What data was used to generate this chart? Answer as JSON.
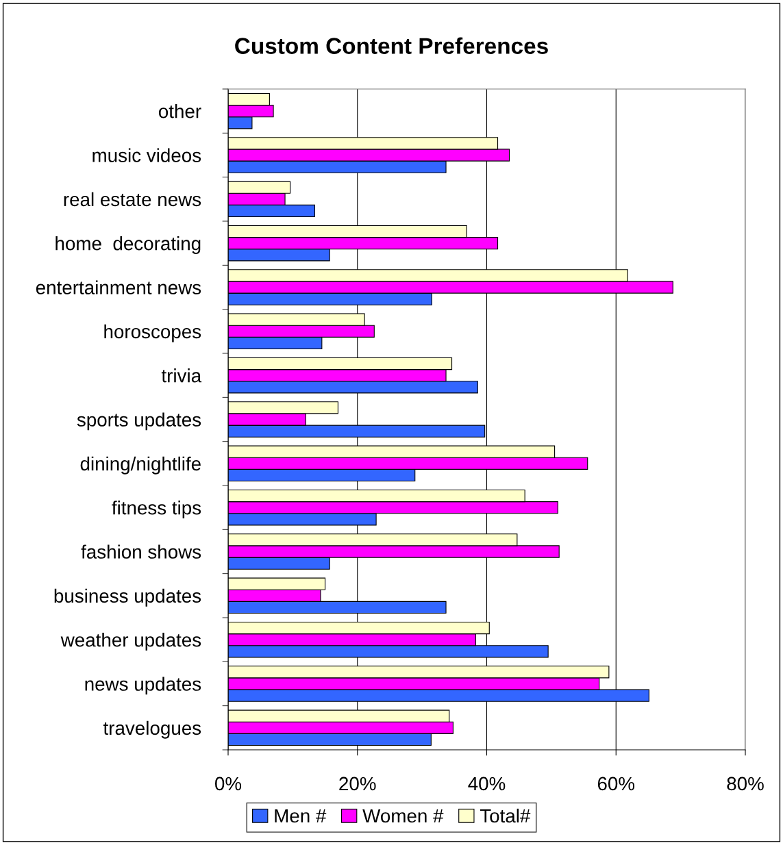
{
  "chart_data": {
    "type": "bar",
    "orientation": "horizontal",
    "title": "Custom Content Preferences",
    "categories": [
      "other",
      "music videos",
      "real estate news",
      "home  decorating",
      "entertainment news",
      "horoscopes",
      "trivia",
      "sports updates",
      "dining/nightlife",
      "fitness tips",
      "fashion shows",
      "business updates",
      "weather updates",
      "news updates",
      "travelogues"
    ],
    "series": [
      {
        "name": "Men #",
        "color": "#3366ff",
        "values": [
          3.7,
          33.7,
          13.4,
          15.7,
          31.5,
          14.5,
          38.6,
          39.7,
          28.9,
          22.9,
          15.7,
          33.7,
          49.5,
          65.1,
          31.4
        ]
      },
      {
        "name": "Women #",
        "color": "#ff00ff",
        "values": [
          7.0,
          43.5,
          8.8,
          41.7,
          68.8,
          22.6,
          33.7,
          12.0,
          55.6,
          51.0,
          51.2,
          14.3,
          38.3,
          57.4,
          34.8
        ]
      },
      {
        "name": "Total#",
        "color": "#ffffcc",
        "values": [
          6.4,
          41.7,
          9.6,
          36.9,
          61.8,
          21.1,
          34.6,
          17.0,
          50.5,
          45.9,
          44.7,
          15.0,
          40.4,
          58.9,
          34.2
        ]
      }
    ],
    "xlim": [
      0,
      80
    ],
    "xticks": [
      {
        "value": 0,
        "label": "0%"
      },
      {
        "value": 20,
        "label": "20%"
      },
      {
        "value": 40,
        "label": "40%"
      },
      {
        "value": 60,
        "label": "60%"
      },
      {
        "value": 80,
        "label": "80%"
      }
    ],
    "grid": "x",
    "legend": "bottom"
  }
}
